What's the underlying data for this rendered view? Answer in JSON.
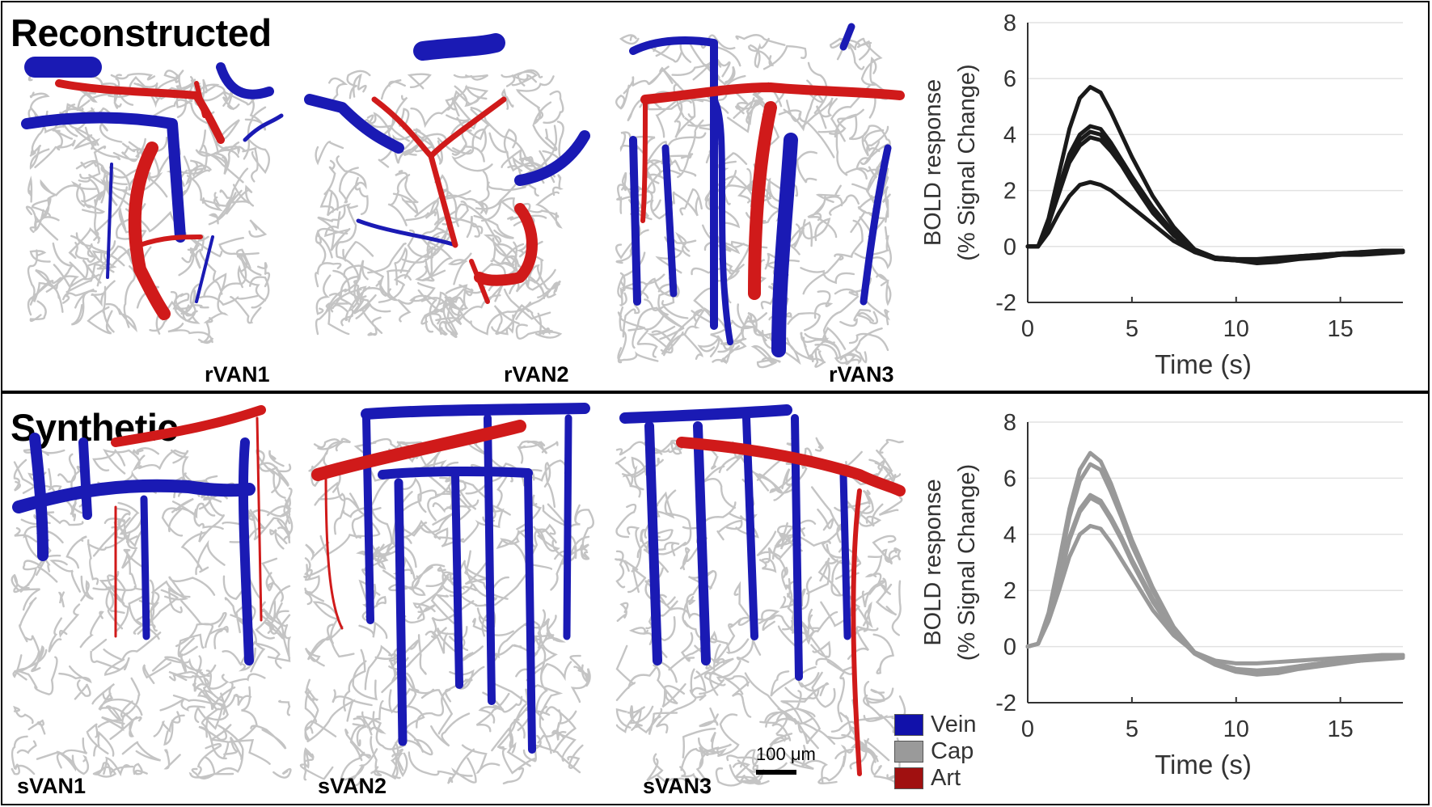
{
  "panels": {
    "top": {
      "title": "Reconstructed",
      "networks": [
        "rVAN1",
        "rVAN2",
        "rVAN3"
      ]
    },
    "bottom": {
      "title": "Synthetic",
      "networks": [
        "sVAN1",
        "sVAN2",
        "sVAN3"
      ]
    }
  },
  "legend": [
    {
      "label": "Vein",
      "color": "#1111aa"
    },
    {
      "label": "Cap",
      "color": "#9a9a9a"
    },
    {
      "label": "Art",
      "color": "#a01010"
    }
  ],
  "scale_bar": {
    "label": "100 μm"
  },
  "vessel_colors": {
    "vein": "#1a1ab4",
    "cap": "#c4c4c4",
    "art": "#d01a1a"
  },
  "chart_data": [
    {
      "type": "line",
      "panel": "top",
      "color": "#1a1a1a",
      "xlabel": "Time (s)",
      "ylabel": "BOLD response",
      "ylabel2": "(% Signal Change)",
      "xlim": [
        0,
        18
      ],
      "ylim": [
        -2,
        8
      ],
      "xticks": [
        0,
        5,
        10,
        15
      ],
      "yticks": [
        -2,
        0,
        2,
        4,
        6,
        8
      ],
      "grid": "horizontal",
      "x": [
        0,
        0.5,
        1,
        1.5,
        2,
        2.5,
        3,
        3.5,
        4,
        4.5,
        5,
        6,
        7,
        8,
        9,
        10,
        11,
        12,
        13,
        14,
        15,
        16,
        17,
        18
      ],
      "series": [
        {
          "values": [
            0,
            0,
            1.0,
            2.6,
            4.2,
            5.3,
            5.7,
            5.5,
            4.8,
            4.0,
            3.2,
            1.8,
            0.7,
            -0.1,
            -0.4,
            -0.5,
            -0.5,
            -0.45,
            -0.4,
            -0.35,
            -0.3,
            -0.25,
            -0.2,
            -0.2
          ]
        },
        {
          "values": [
            0,
            0,
            0.9,
            2.1,
            3.3,
            4.0,
            4.3,
            4.2,
            3.7,
            3.1,
            2.5,
            1.4,
            0.5,
            -0.1,
            -0.4,
            -0.45,
            -0.45,
            -0.4,
            -0.35,
            -0.3,
            -0.25,
            -0.2,
            -0.2,
            -0.15
          ]
        },
        {
          "values": [
            0,
            0,
            0.8,
            2.0,
            3.1,
            3.8,
            4.1,
            4.0,
            3.5,
            3.0,
            2.4,
            1.3,
            0.4,
            -0.15,
            -0.45,
            -0.5,
            -0.55,
            -0.5,
            -0.4,
            -0.35,
            -0.3,
            -0.25,
            -0.2,
            -0.2
          ]
        },
        {
          "values": [
            0,
            0,
            0.8,
            1.9,
            3.0,
            3.6,
            3.9,
            3.8,
            3.4,
            2.9,
            2.3,
            1.2,
            0.4,
            -0.2,
            -0.45,
            -0.5,
            -0.6,
            -0.55,
            -0.45,
            -0.4,
            -0.3,
            -0.3,
            -0.25,
            -0.2
          ]
        },
        {
          "values": [
            0,
            0,
            0.5,
            1.2,
            1.8,
            2.2,
            2.3,
            2.2,
            2.0,
            1.7,
            1.4,
            0.8,
            0.2,
            -0.2,
            -0.4,
            -0.45,
            -0.5,
            -0.45,
            -0.35,
            -0.3,
            -0.25,
            -0.2,
            -0.15,
            -0.15
          ]
        }
      ]
    },
    {
      "type": "line",
      "panel": "bottom",
      "color": "#999999",
      "xlabel": "Time (s)",
      "ylabel": "BOLD response",
      "ylabel2": "(% Signal Change)",
      "xlim": [
        0,
        18
      ],
      "ylim": [
        -2,
        8
      ],
      "xticks": [
        0,
        5,
        10,
        15
      ],
      "yticks": [
        -2,
        0,
        2,
        4,
        6,
        8
      ],
      "grid": "horizontal",
      "x": [
        0,
        0.5,
        1,
        1.5,
        2,
        2.5,
        3,
        3.5,
        4,
        4.5,
        5,
        6,
        7,
        8,
        9,
        10,
        11,
        12,
        13,
        14,
        15,
        16,
        17,
        18
      ],
      "series": [
        {
          "values": [
            0,
            0.1,
            1.2,
            3.0,
            4.9,
            6.3,
            6.9,
            6.6,
            5.8,
            4.8,
            3.8,
            2.1,
            0.7,
            -0.2,
            -0.6,
            -0.8,
            -0.85,
            -0.8,
            -0.7,
            -0.6,
            -0.5,
            -0.45,
            -0.4,
            -0.3
          ]
        },
        {
          "values": [
            0,
            0.1,
            1.1,
            2.8,
            4.6,
            5.9,
            6.5,
            6.3,
            5.5,
            4.6,
            3.6,
            2.0,
            0.7,
            -0.2,
            -0.6,
            -0.8,
            -0.9,
            -0.85,
            -0.7,
            -0.6,
            -0.55,
            -0.5,
            -0.4,
            -0.35
          ]
        },
        {
          "values": [
            0,
            0.1,
            1.0,
            2.4,
            3.9,
            4.9,
            5.4,
            5.2,
            4.6,
            3.9,
            3.1,
            1.7,
            0.6,
            -0.2,
            -0.6,
            -0.85,
            -0.95,
            -0.9,
            -0.75,
            -0.65,
            -0.55,
            -0.5,
            -0.4,
            -0.35
          ]
        },
        {
          "values": [
            0,
            0.1,
            1.0,
            2.3,
            3.8,
            4.8,
            5.3,
            5.1,
            4.5,
            3.8,
            3.0,
            1.6,
            0.5,
            -0.25,
            -0.65,
            -0.9,
            -1.0,
            -0.95,
            -0.8,
            -0.7,
            -0.6,
            -0.5,
            -0.45,
            -0.4
          ]
        },
        {
          "values": [
            0,
            0.1,
            0.9,
            2.0,
            3.2,
            4.0,
            4.3,
            4.2,
            3.7,
            3.1,
            2.5,
            1.3,
            0.4,
            -0.2,
            -0.5,
            -0.6,
            -0.6,
            -0.55,
            -0.5,
            -0.45,
            -0.4,
            -0.35,
            -0.3,
            -0.3
          ]
        }
      ]
    }
  ]
}
